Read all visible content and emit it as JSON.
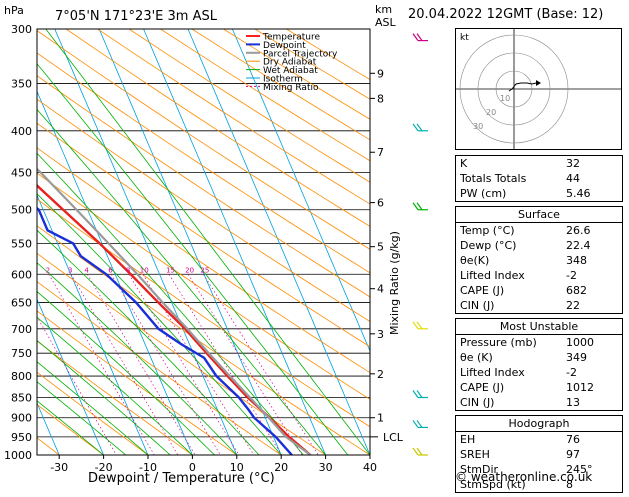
{
  "header": {
    "location": "7°05'N  171°23'E  3m  ASL",
    "datetime": "20.04.2022  12GMT  (Base: 12)",
    "p_unit": "hPa",
    "alt_unit_km": "km",
    "alt_unit_asl": "ASL"
  },
  "chart_data": {
    "type": "line",
    "title": "7°05'N  171°23'E  3m  ASL",
    "xlabel": "Dewpoint / Temperature (°C)",
    "ylabel": "hPa",
    "right_axis_label": "Mixing Ratio (g/kg)",
    "xlim": [
      -35,
      40
    ],
    "ylim": [
      1000,
      300
    ],
    "pressure_ticks": [
      300,
      350,
      400,
      450,
      500,
      550,
      600,
      650,
      700,
      750,
      800,
      850,
      900,
      950,
      1000
    ],
    "x_ticks": [
      -30,
      -20,
      -10,
      0,
      10,
      20,
      30,
      40
    ],
    "alt_km_ticks": [
      {
        "label": "1",
        "p": 900
      },
      {
        "label": "2",
        "p": 795
      },
      {
        "label": "3",
        "p": 710
      },
      {
        "label": "4",
        "p": 625
      },
      {
        "label": "5",
        "p": 555
      },
      {
        "label": "6",
        "p": 490
      },
      {
        "label": "7",
        "p": 425
      },
      {
        "label": "8",
        "p": 365
      },
      {
        "label": "9",
        "p": 340
      }
    ],
    "lcl_label": "LCL",
    "lcl_p": 950,
    "mixing_ratio_labels": [
      "1",
      "2",
      "3",
      "4",
      "6",
      "8",
      "10",
      "15",
      "20",
      "25"
    ],
    "legend": [
      "Temperature",
      "Dewpoint",
      "Parcel Trajectory",
      "Dry Adiabat",
      "Wet Adiabat",
      "Isotherm",
      "Mixing Ratio"
    ],
    "legend_colors": [
      "#ff2020",
      "#1a2fd8",
      "#9a9a9a",
      "#ff8c00",
      "#00b000",
      "#00a0e0",
      "#d4008c"
    ],
    "series": [
      {
        "name": "Temperature",
        "color": "#e8221c",
        "points": [
          {
            "p": 1000,
            "t": 26.6
          },
          {
            "p": 950,
            "t": 23.5
          },
          {
            "p": 900,
            "t": 21.0
          },
          {
            "p": 850,
            "t": 18.0
          },
          {
            "p": 800,
            "t": 15.5
          },
          {
            "p": 750,
            "t": 13.0
          },
          {
            "p": 700,
            "t": 10.5
          },
          {
            "p": 650,
            "t": 7.0
          },
          {
            "p": 600,
            "t": 3.5
          },
          {
            "p": 550,
            "t": -0.5
          },
          {
            "p": 500,
            "t": -5.5
          },
          {
            "p": 450,
            "t": -11.0
          },
          {
            "p": 400,
            "t": -18.0
          },
          {
            "p": 350,
            "t": -26.0
          },
          {
            "p": 300,
            "t": -36.0
          }
        ]
      },
      {
        "name": "Dewpoint",
        "color": "#1a2fd8",
        "points": [
          {
            "p": 1000,
            "t": 22.4
          },
          {
            "p": 950,
            "t": 20.5
          },
          {
            "p": 900,
            "t": 17.5
          },
          {
            "p": 880,
            "t": 17.0
          },
          {
            "p": 850,
            "t": 16.0
          },
          {
            "p": 800,
            "t": 13.0
          },
          {
            "p": 760,
            "t": 12.0
          },
          {
            "p": 730,
            "t": 8.0
          },
          {
            "p": 700,
            "t": 4.5
          },
          {
            "p": 650,
            "t": 2.0
          },
          {
            "p": 600,
            "t": -2.0
          },
          {
            "p": 570,
            "t": -6.0
          },
          {
            "p": 550,
            "t": -6.5
          },
          {
            "p": 530,
            "t": -11.0
          },
          {
            "p": 500,
            "t": -11.0
          },
          {
            "p": 470,
            "t": -15.0
          },
          {
            "p": 450,
            "t": -16.0
          },
          {
            "p": 420,
            "t": -22.0
          },
          {
            "p": 390,
            "t": -27.0
          },
          {
            "p": 370,
            "t": -42.0
          },
          {
            "p": 355,
            "t": -35.0
          },
          {
            "p": 340,
            "t": -42.0
          },
          {
            "p": 320,
            "t": -40.0
          },
          {
            "p": 300,
            "t": -46.0
          }
        ]
      },
      {
        "name": "Parcel Trajectory",
        "color": "#9a9a9a",
        "points": [
          {
            "p": 1000,
            "t": 26.6
          },
          {
            "p": 950,
            "t": 22.8
          },
          {
            "p": 900,
            "t": 20.8
          },
          {
            "p": 850,
            "t": 18.5
          },
          {
            "p": 800,
            "t": 16.0
          },
          {
            "p": 750,
            "t": 13.5
          },
          {
            "p": 700,
            "t": 11.0
          },
          {
            "p": 650,
            "t": 8.0
          },
          {
            "p": 600,
            "t": 5.0
          },
          {
            "p": 550,
            "t": 1.5
          },
          {
            "p": 500,
            "t": -2.5
          },
          {
            "p": 450,
            "t": -7.0
          },
          {
            "p": 400,
            "t": -13.0
          },
          {
            "p": 350,
            "t": -20.0
          },
          {
            "p": 300,
            "t": -29.0
          }
        ]
      }
    ],
    "wind_barbs": [
      {
        "p": 310,
        "color": "#cc0080"
      },
      {
        "p": 400,
        "color": "#00b0b0"
      },
      {
        "p": 500,
        "color": "#00b000"
      },
      {
        "p": 700,
        "color": "#e0e000"
      },
      {
        "p": 850,
        "color": "#00b0b0"
      },
      {
        "p": 925,
        "color": "#00b0b0"
      },
      {
        "p": 1000,
        "color": "#c8c800"
      }
    ]
  },
  "hodograph": {
    "unit": "kt",
    "ring_labels": [
      "10",
      "20",
      "30"
    ]
  },
  "indices": {
    "top": [
      {
        "label": "K",
        "value": "32"
      },
      {
        "label": "Totals Totals",
        "value": "44"
      },
      {
        "label": "PW (cm)",
        "value": "5.46"
      }
    ],
    "surface": {
      "title": "Surface",
      "rows": [
        {
          "label": "Temp (°C)",
          "value": "26.6"
        },
        {
          "label": "Dewp (°C)",
          "value": "22.4"
        },
        {
          "label": "θe(K)",
          "value": "348"
        },
        {
          "label": "Lifted Index",
          "value": "-2"
        },
        {
          "label": "CAPE (J)",
          "value": "682"
        },
        {
          "label": "CIN (J)",
          "value": "22"
        }
      ]
    },
    "most_unstable": {
      "title": "Most Unstable",
      "rows": [
        {
          "label": "Pressure (mb)",
          "value": "1000"
        },
        {
          "label": "θe (K)",
          "value": "349"
        },
        {
          "label": "Lifted Index",
          "value": "-2"
        },
        {
          "label": "CAPE (J)",
          "value": "1012"
        },
        {
          "label": "CIN (J)",
          "value": "13"
        }
      ]
    },
    "hodograph_box": {
      "title": "Hodograph",
      "rows": [
        {
          "label": "EH",
          "value": "76"
        },
        {
          "label": "SREH",
          "value": "97"
        },
        {
          "label": "StmDir",
          "value": "245°"
        },
        {
          "label": "StmSpd (kt)",
          "value": "8"
        }
      ]
    }
  },
  "credit": "© weatheronline.co.uk"
}
